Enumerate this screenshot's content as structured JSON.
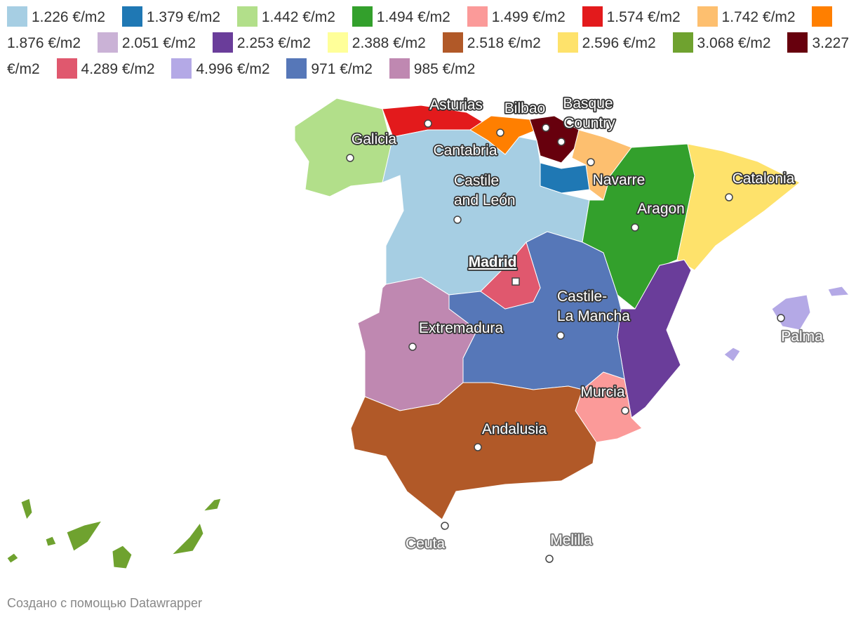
{
  "legend": [
    {
      "label": "1.226 €/m2",
      "color": "#a6cee3"
    },
    {
      "label": "1.379 €/m2",
      "color": "#1f78b4"
    },
    {
      "label": "1.442 €/m2",
      "color": "#b2df8a"
    },
    {
      "label": "1.494 €/m2",
      "color": "#33a02c"
    },
    {
      "label": "1.499 €/m2",
      "color": "#fb9a99"
    },
    {
      "label": "1.574 €/m2",
      "color": "#e31a1c"
    },
    {
      "label": "1.742 €/m2",
      "color": "#fdbf6f"
    },
    {
      "label": "1.876 €/m2",
      "color": "#ff7f00"
    },
    {
      "label": "2.051 €/m2",
      "color": "#cab2d6"
    },
    {
      "label": "2.253 €/m2",
      "color": "#6a3d9a"
    },
    {
      "label": "2.388 €/m2",
      "color": "#ffff99"
    },
    {
      "label": "2.518 €/m2",
      "color": "#b15928"
    },
    {
      "label": "2.596 €/m2",
      "color": "#fee26b"
    },
    {
      "label": "3.068 €/m2",
      "color": "#6fa22f"
    },
    {
      "label": "3.227 €/m2",
      "color": "#67000d"
    },
    {
      "label": "4.289 €/m2",
      "color": "#e0586e"
    },
    {
      "label": "4.996 €/m2",
      "color": "#b4a9e6"
    },
    {
      "label": "971 €/m2",
      "color": "#5677b8"
    },
    {
      "label": "985 €/m2",
      "color": "#bf88b1"
    }
  ],
  "places": [
    {
      "lines": [
        "Asturias"
      ]
    },
    {
      "lines": [
        "Bilbao"
      ]
    },
    {
      "lines": [
        "Basque",
        "Country"
      ]
    },
    {
      "lines": [
        "Galicia"
      ]
    },
    {
      "lines": [
        "Cantabria"
      ]
    },
    {
      "lines": [
        "Castile",
        "and León"
      ]
    },
    {
      "lines": [
        "Navarre"
      ]
    },
    {
      "lines": [
        "Catalonia"
      ]
    },
    {
      "lines": [
        "Aragon"
      ]
    },
    {
      "lines": [
        "Madrid"
      ]
    },
    {
      "lines": [
        "Castile-",
        "La Mancha"
      ]
    },
    {
      "lines": [
        "Extremadura"
      ]
    },
    {
      "lines": [
        "Palma"
      ]
    },
    {
      "lines": [
        "Murcia"
      ]
    },
    {
      "lines": [
        "Andalusia"
      ]
    },
    {
      "lines": [
        "Ceuta"
      ]
    },
    {
      "lines": [
        "Melilla"
      ]
    }
  ],
  "footer": "Создано с помощью Datawrapper"
}
